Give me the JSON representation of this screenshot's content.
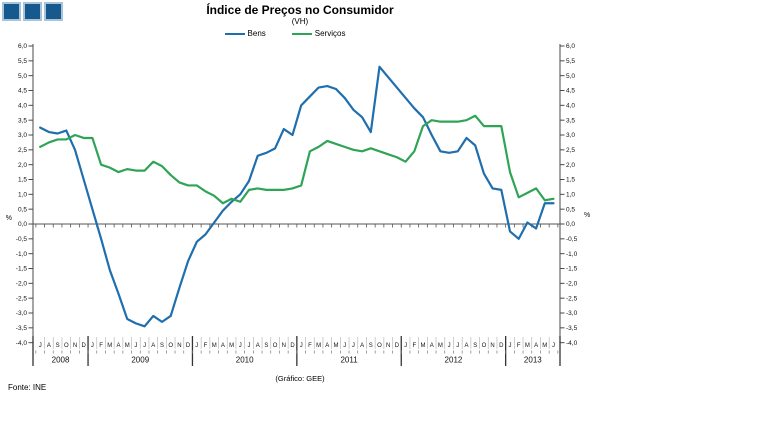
{
  "header": {
    "title": "Índice de Preços no Consumidor",
    "subtitle": "(VH)"
  },
  "legend": [
    {
      "label": "Bens",
      "color": "#1F6EAE"
    },
    {
      "label": "Serviços",
      "color": "#2FA456"
    }
  ],
  "footer": {
    "source": "Fonte: INE",
    "credit": "(Gráfico: GEE)"
  },
  "logo": {
    "square_color": "#15598F",
    "square_border": "#A7C4D9",
    "count": 3
  },
  "chart_data": {
    "type": "line",
    "title": "Índice de Preços no Consumidor",
    "subtitle": "(VH)",
    "ylabel": "%",
    "ylim": [
      -4.0,
      6.0
    ],
    "ytick_step": 0.5,
    "ytick_labels": [
      "6,0",
      "5,5",
      "5,0",
      "4,5",
      "4,0",
      "3,5",
      "3,0",
      "2,5",
      "2,0",
      "1,5",
      "1,0",
      "0,5",
      "0,0",
      "-0,5",
      "-1,0",
      "-1,5",
      "-2,0",
      "-2,5",
      "-3,0",
      "-3,5",
      "-4,0"
    ],
    "grid": false,
    "legend_position": "top",
    "x_start": "2008-07",
    "x_end": "2013-06",
    "x_month_letters": "JASONDJFMAMJJASONDJFMAMJJASONDJFMAMJJASONDJFMAMJJASONDJFMAMJ",
    "years": [
      {
        "label": "2008",
        "months": 6
      },
      {
        "label": "2009",
        "months": 12
      },
      {
        "label": "2010",
        "months": 12
      },
      {
        "label": "2011",
        "months": 12
      },
      {
        "label": "2012",
        "months": 12
      },
      {
        "label": "2013",
        "months": 6
      }
    ],
    "series": [
      {
        "name": "Bens",
        "color": "#1F6EAE",
        "values": [
          3.25,
          3.1,
          3.05,
          3.15,
          2.5,
          1.5,
          0.5,
          -0.5,
          -1.55,
          -2.35,
          -3.2,
          -3.35,
          -3.45,
          -3.1,
          -3.3,
          -3.1,
          -2.15,
          -1.25,
          -0.6,
          -0.35,
          0.05,
          0.45,
          0.75,
          1.0,
          1.45,
          2.3,
          2.4,
          2.55,
          3.2,
          3.0,
          4.0,
          4.3,
          4.6,
          4.65,
          4.55,
          4.25,
          3.85,
          3.6,
          3.1,
          5.3,
          4.95,
          4.6,
          4.25,
          3.9,
          3.6,
          3.0,
          2.45,
          2.4,
          2.45,
          2.9,
          2.65,
          1.7,
          1.2,
          1.15,
          -0.25,
          -0.5,
          0.05,
          -0.15,
          0.7,
          0.7
        ]
      },
      {
        "name": "Serviços",
        "color": "#2FA456",
        "values": [
          2.6,
          2.75,
          2.85,
          2.85,
          3.0,
          2.9,
          2.9,
          2.0,
          1.9,
          1.75,
          1.85,
          1.8,
          1.8,
          2.1,
          1.95,
          1.65,
          1.4,
          1.3,
          1.3,
          1.1,
          0.95,
          0.7,
          0.85,
          0.75,
          1.15,
          1.2,
          1.15,
          1.15,
          1.15,
          1.2,
          1.3,
          2.45,
          2.6,
          2.8,
          2.7,
          2.6,
          2.5,
          2.45,
          2.55,
          2.45,
          2.35,
          2.25,
          2.1,
          2.45,
          3.3,
          3.5,
          3.45,
          3.45,
          3.45,
          3.5,
          3.65,
          3.3,
          3.3,
          3.3,
          1.75,
          0.9,
          1.05,
          1.2,
          0.8,
          0.85
        ]
      }
    ]
  }
}
